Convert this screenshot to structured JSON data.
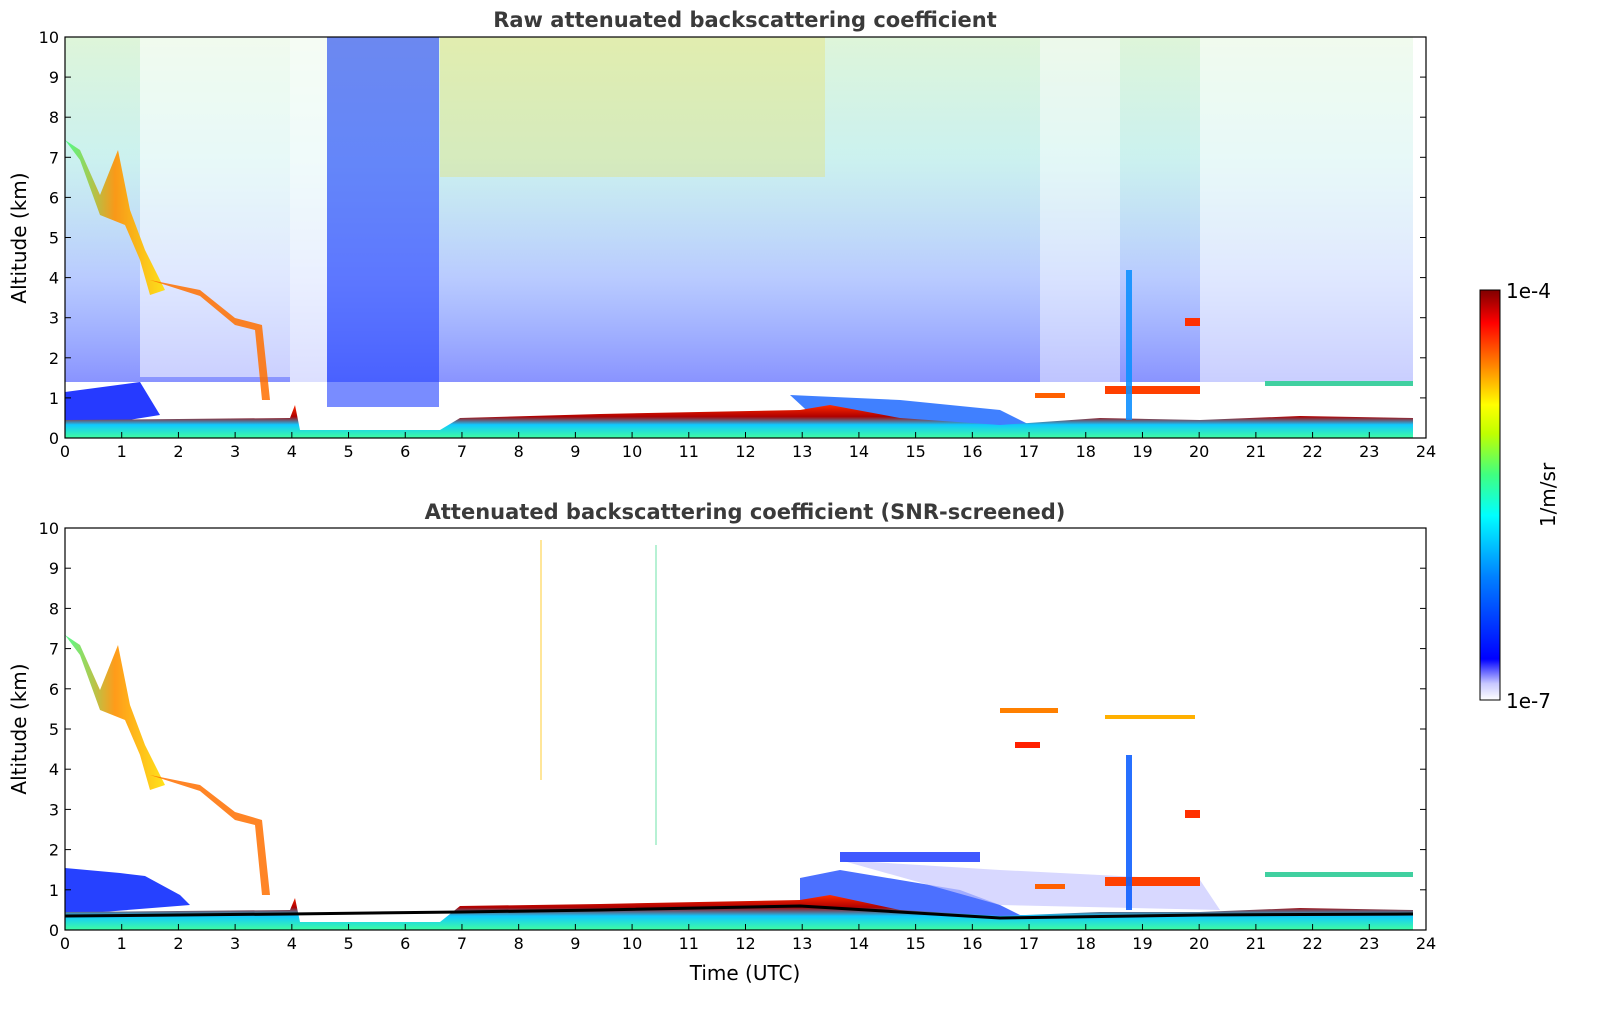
{
  "chart_data": [
    {
      "type": "heatmap",
      "title": "Raw attenuated backscattering coefficient",
      "xlabel": "",
      "ylabel": "Altitude (km)",
      "xlim": [
        0,
        24
      ],
      "ylim": [
        0,
        10
      ],
      "xticks": [
        "0",
        "1",
        "2",
        "3",
        "4",
        "5",
        "6",
        "7",
        "8",
        "9",
        "10",
        "11",
        "12",
        "13",
        "14",
        "15",
        "16",
        "17",
        "18",
        "19",
        "20",
        "21",
        "22",
        "23",
        "24"
      ],
      "yticks": [
        "0",
        "1",
        "2",
        "3",
        "4",
        "5",
        "6",
        "7",
        "8",
        "9",
        "10"
      ],
      "features": [
        {
          "name": "boundary layer",
          "time": [
            0,
            23.8
          ],
          "altitude_km": [
            0,
            0.5
          ],
          "level": "high"
        },
        {
          "name": "descending cloud",
          "time": [
            0,
            4
          ],
          "altitude_km": [
            7,
            1
          ],
          "level": "high"
        },
        {
          "name": "cloud layer",
          "time": [
            17,
            20
          ],
          "altitude_km": [
            1,
            1.3
          ],
          "level": "high"
        },
        {
          "name": "noise region",
          "time": [
            0,
            23.8
          ],
          "altitude_km": [
            1,
            10
          ],
          "level": "medium"
        }
      ]
    },
    {
      "type": "heatmap",
      "title": "Attenuated backscattering coefficient (SNR-screened)",
      "xlabel": "Time (UTC)",
      "ylabel": "Altitude (km)",
      "xlim": [
        0,
        24
      ],
      "ylim": [
        0,
        10
      ],
      "xticks": [
        "0",
        "1",
        "2",
        "3",
        "4",
        "5",
        "6",
        "7",
        "8",
        "9",
        "10",
        "11",
        "12",
        "13",
        "14",
        "15",
        "16",
        "17",
        "18",
        "19",
        "20",
        "21",
        "22",
        "23",
        "24"
      ],
      "yticks": [
        "0",
        "1",
        "2",
        "3",
        "4",
        "5",
        "6",
        "7",
        "8",
        "9",
        "10"
      ],
      "features": [
        {
          "name": "boundary layer",
          "time": [
            0,
            23.8
          ],
          "altitude_km": [
            0,
            0.5
          ],
          "level": "high"
        },
        {
          "name": "descending cloud",
          "time": [
            0,
            4
          ],
          "altitude_km": [
            7,
            1
          ],
          "level": "high"
        },
        {
          "name": "cloud layer",
          "time": [
            17,
            20
          ],
          "altitude_km": [
            1,
            1.3
          ],
          "level": "high"
        },
        {
          "name": "plume",
          "time": [
            18.7,
            18.9
          ],
          "altitude_km": [
            0.3,
            4.3
          ],
          "level": "medium"
        }
      ]
    }
  ],
  "colorbar": {
    "max_label": "1e-4",
    "min_label": "1e-7",
    "unit_label": "1/m/sr",
    "colormap": "jet"
  },
  "colors": {
    "title": "#3a3a3a",
    "axis": "#000000",
    "background": "#ffffff"
  }
}
